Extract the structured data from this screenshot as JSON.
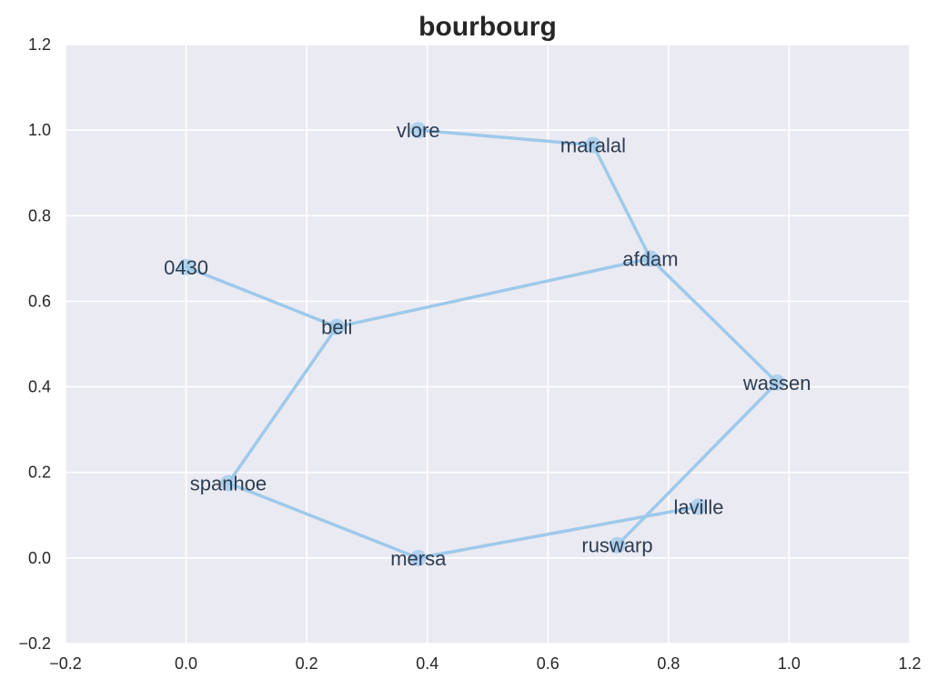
{
  "chart_data": {
    "type": "line",
    "title": "bourbourg",
    "xlabel": "",
    "ylabel": "",
    "xlim": [
      -0.2,
      1.2
    ],
    "ylim": [
      -0.2,
      1.2
    ],
    "x_ticks": [
      "−0.2",
      "0.0",
      "0.2",
      "0.4",
      "0.6",
      "0.8",
      "1.0",
      "1.2"
    ],
    "y_ticks": [
      "−0.2",
      "0.0",
      "0.2",
      "0.4",
      "0.6",
      "0.8",
      "1.0",
      "1.2"
    ],
    "grid": true,
    "style": {
      "background": "#eaeaf2",
      "grid_color": "#ffffff",
      "line_color": "#9ec9ea",
      "marker_color": "#9ec9ea"
    },
    "series": [
      {
        "points": [
          {
            "label": "0430",
            "x": 0.0,
            "y": 0.68
          },
          {
            "label": "beli",
            "x": 0.25,
            "y": 0.54
          },
          {
            "label": "afdam",
            "x": 0.77,
            "y": 0.7
          },
          {
            "label": "maralal",
            "x": 0.675,
            "y": 0.965
          },
          {
            "label": "vlore",
            "x": 0.385,
            "y": 1.0
          }
        ]
      },
      {
        "points": [
          {
            "label": "beli",
            "x": 0.25,
            "y": 0.54
          },
          {
            "label": "spanhoe",
            "x": 0.07,
            "y": 0.175
          },
          {
            "label": "mersa",
            "x": 0.385,
            "y": 0.0
          },
          {
            "label": "laville",
            "x": 0.85,
            "y": 0.12
          }
        ]
      },
      {
        "points": [
          {
            "label": "afdam",
            "x": 0.77,
            "y": 0.7
          },
          {
            "label": "wassen",
            "x": 0.98,
            "y": 0.41
          },
          {
            "label": "ruswarp",
            "x": 0.715,
            "y": 0.03
          }
        ]
      }
    ]
  }
}
